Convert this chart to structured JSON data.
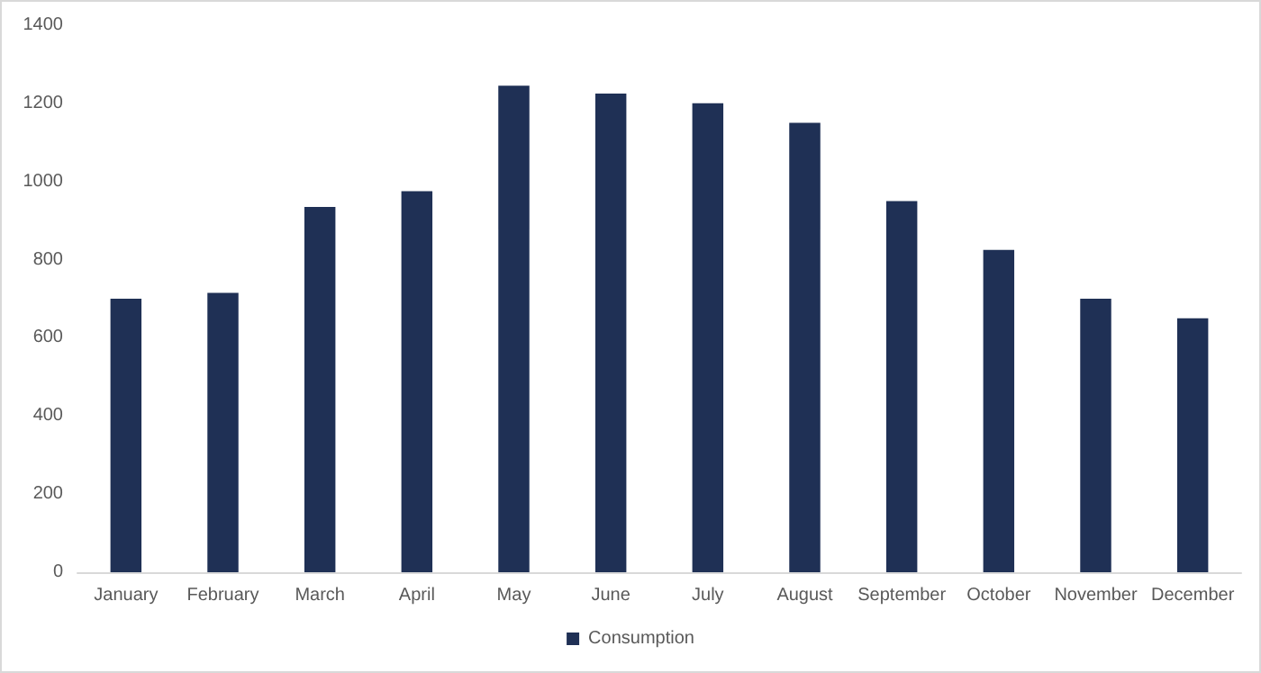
{
  "chart_data": {
    "type": "bar",
    "categories": [
      "January",
      "February",
      "March",
      "April",
      "May",
      "June",
      "July",
      "August",
      "September",
      "October",
      "November",
      "December"
    ],
    "series": [
      {
        "name": "Consumption",
        "color": "#1f3055",
        "values": [
          700,
          715,
          935,
          975,
          1245,
          1225,
          1200,
          1150,
          950,
          825,
          700,
          650
        ]
      }
    ],
    "ylim": [
      0,
      1400
    ],
    "yticks": [
      0,
      200,
      400,
      600,
      800,
      1000,
      1200,
      1400
    ],
    "grid": false,
    "legend": "bottom"
  }
}
